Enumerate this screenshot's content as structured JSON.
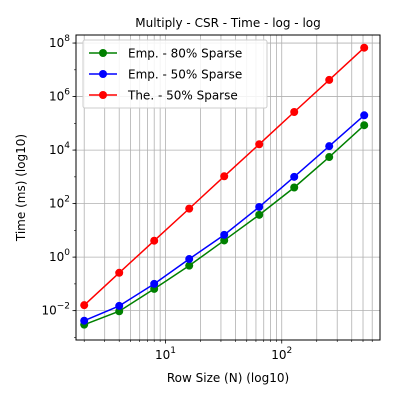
{
  "chart_data": {
    "type": "line",
    "title": "Multiply - CSR - Time - log - log",
    "xlabel": "Row Size (N) (log10)",
    "ylabel": "Time (ms) (log10)",
    "xscale": "log",
    "yscale": "log",
    "xlim": [
      1.7,
      700
    ],
    "ylim": [
      0.0008,
      200000000
    ],
    "xticks": [
      {
        "value": 10,
        "base": "10",
        "exp": "1"
      },
      {
        "value": 100,
        "base": "10",
        "exp": "2"
      }
    ],
    "yticks": [
      {
        "value": 0.01,
        "base": "10",
        "exp": "−2"
      },
      {
        "value": 1,
        "base": "10",
        "exp": "0"
      },
      {
        "value": 100,
        "base": "10",
        "exp": "2"
      },
      {
        "value": 10000,
        "base": "10",
        "exp": "4"
      },
      {
        "value": 1000000,
        "base": "10",
        "exp": "6"
      },
      {
        "value": 100000000,
        "base": "10",
        "exp": "8"
      }
    ],
    "grid": true,
    "grid_minor_x": true,
    "legend_position": "top-left",
    "x": [
      2,
      4,
      8,
      16,
      32,
      64,
      128,
      256,
      512
    ],
    "series": [
      {
        "name": "Emp. - 80% Sparse",
        "color": "#008000",
        "values": [
          0.003,
          0.0095,
          0.065,
          0.48,
          4.2,
          38,
          400,
          5500,
          85000
        ]
      },
      {
        "name": "Emp. - 50% Sparse",
        "color": "#0000ff",
        "values": [
          0.0042,
          0.015,
          0.1,
          0.85,
          6.8,
          75,
          1000,
          14000,
          200000
        ]
      },
      {
        "name": "The.  - 50% Sparse",
        "color": "#ff0000",
        "values": [
          0.016,
          0.26,
          4.1,
          65,
          1050,
          16500,
          265000,
          4200000,
          67000000
        ]
      }
    ]
  }
}
